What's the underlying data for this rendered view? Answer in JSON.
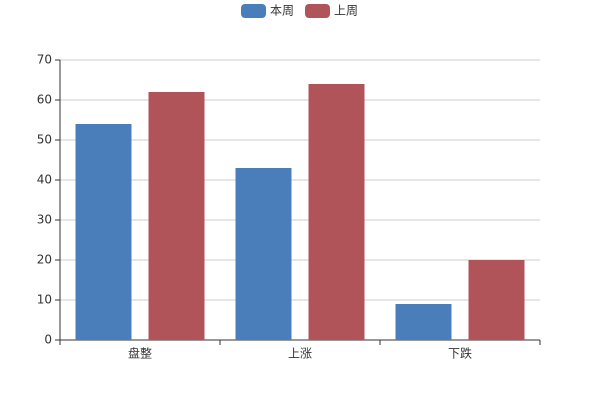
{
  "chart_data": {
    "type": "bar",
    "categories": [
      "盘整",
      "上涨",
      "下跌"
    ],
    "series": [
      {
        "name": "本周",
        "color": "#4a7ebb",
        "values": [
          54,
          43,
          9
        ]
      },
      {
        "name": "上周",
        "color": "#b0545a",
        "values": [
          62,
          64,
          20
        ]
      }
    ],
    "ylim": [
      0,
      70
    ],
    "yticks": [
      0,
      10,
      20,
      30,
      40,
      50,
      60,
      70
    ],
    "grid": true,
    "legend": "top"
  }
}
